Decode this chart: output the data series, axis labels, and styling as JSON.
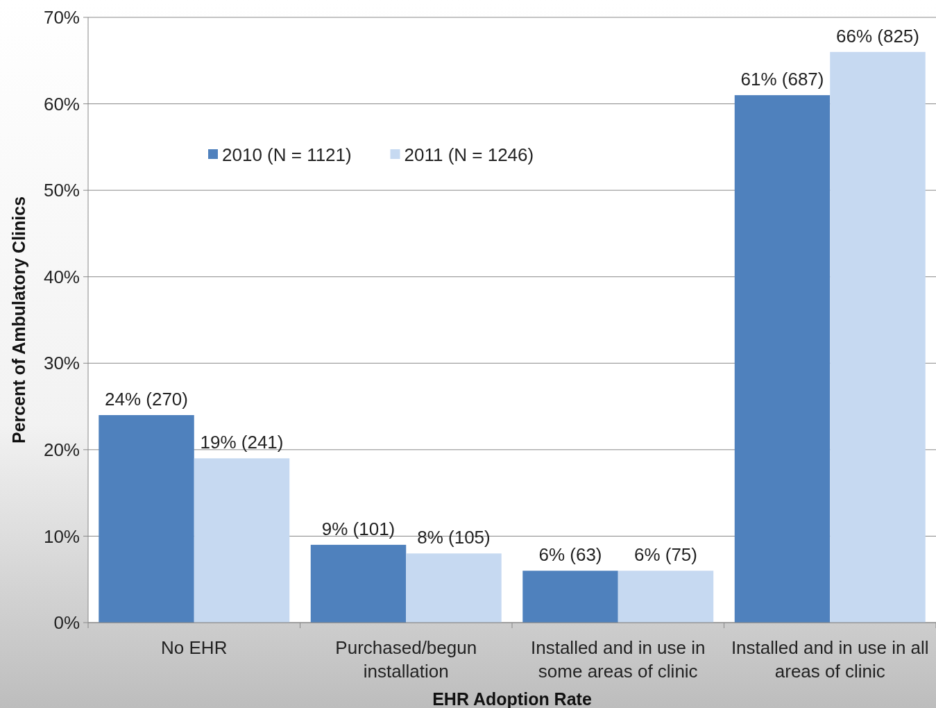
{
  "chart_data": {
    "type": "bar",
    "xlabel": "EHR Adoption Rate",
    "ylabel": "Percent of Ambulatory Clinics",
    "categories": [
      "No EHR",
      "Purchased/begun installation",
      "Installed and in use in some areas of clinic",
      "Installed and in use in all areas of clinic"
    ],
    "series": [
      {
        "name": "2010 (N = 1121)",
        "color": "#4f81bd",
        "values": [
          24,
          9,
          6,
          61
        ],
        "value_labels": [
          "24% (270)",
          "9% (101)",
          "6% (63)",
          "61% (687)"
        ]
      },
      {
        "name": "2011 (N = 1246)",
        "color": "#c6d9f1",
        "values": [
          19,
          8,
          6,
          66
        ],
        "value_labels": [
          "19% (241)",
          "8% (105)",
          "6% (75)",
          "66% (825)"
        ]
      }
    ],
    "ylim": [
      0,
      70
    ],
    "yticks": [
      {
        "value": 0,
        "label": "0%"
      },
      {
        "value": 10,
        "label": "10%"
      },
      {
        "value": 20,
        "label": "20%"
      },
      {
        "value": 30,
        "label": "30%"
      },
      {
        "value": 40,
        "label": "40%"
      },
      {
        "value": 50,
        "label": "50%"
      },
      {
        "value": 60,
        "label": "60%"
      },
      {
        "value": 70,
        "label": "70%"
      }
    ],
    "grid": "y",
    "legend": "top left"
  }
}
